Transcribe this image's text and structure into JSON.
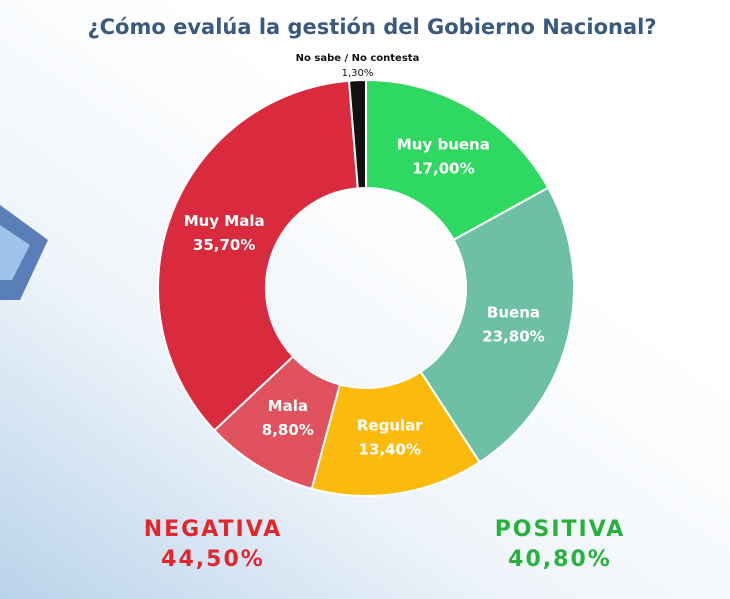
{
  "chart_data": {
    "type": "donut",
    "title": "¿Cómo evalúa la gestión del Gobierno Nacional?",
    "categories": [
      "Muy buena",
      "Buena",
      "Regular",
      "Mala",
      "Muy Mala",
      "No sabe / No contesta"
    ],
    "values": [
      17.0,
      23.8,
      13.4,
      8.8,
      35.7,
      1.3
    ],
    "value_labels": [
      "17,00%",
      "23,80%",
      "13,40%",
      "8,80%",
      "35,70%",
      "1,30%"
    ],
    "colors": [
      "#2fd961",
      "#6dbfa6",
      "#fbbb0c",
      "#e1525f",
      "#d92b3d",
      "#111111"
    ],
    "summary": [
      {
        "label": "NEGATIVA",
        "value": 44.5,
        "value_label": "44,50%",
        "color": "#e3262c"
      },
      {
        "label": "POSITIVA",
        "value": 40.8,
        "value_label": "40,80%",
        "color": "#27b33b"
      }
    ]
  }
}
